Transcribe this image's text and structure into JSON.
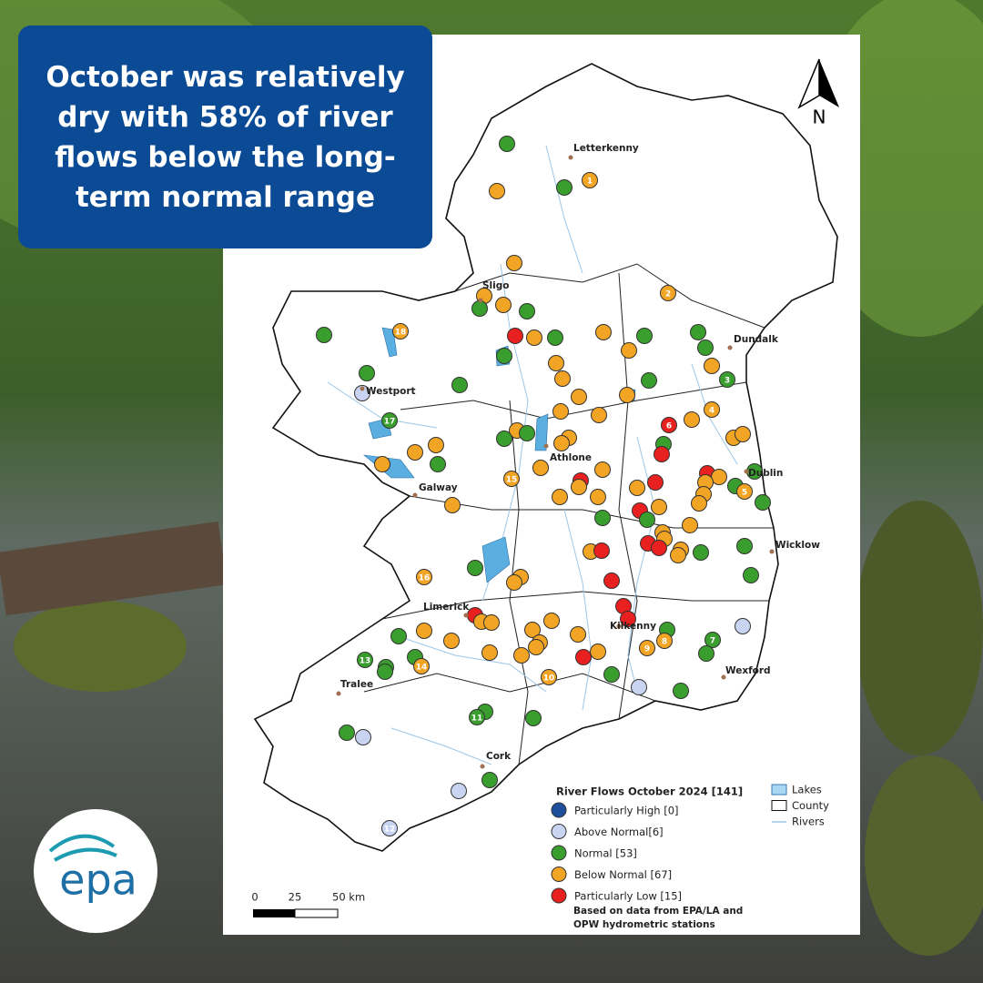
{
  "headline": "October was relatively dry with 58% of river flows below the long-term normal range",
  "north": "N",
  "towns": [
    "Letterkenny",
    "Sligo",
    "Dundalk",
    "Westport",
    "Athlone",
    "Dublin",
    "Galway",
    "Wicklow",
    "Limerick",
    "Kilkenny",
    "Tralee",
    "Wexford",
    "Cork"
  ],
  "station_labels": [
    "1",
    "2",
    "3",
    "4",
    "5",
    "6",
    "7",
    "8",
    "9",
    "10",
    "11",
    "12",
    "13",
    "14",
    "15",
    "16",
    "17",
    "18"
  ],
  "legend": {
    "title": "River Flows October 2024 [141]",
    "classes": [
      {
        "label": "Particularly High [0]",
        "color": "#1d4f9c"
      },
      {
        "label": "Above Normal[6]",
        "color": "#c9d3f2"
      },
      {
        "label": "Normal [53]",
        "color": "#3a9e2e"
      },
      {
        "label": "Below Normal [67]",
        "color": "#f2a424"
      },
      {
        "label": "Particularly Low [15]",
        "color": "#e8201f"
      }
    ],
    "layers": [
      "Lakes",
      "County",
      "Rivers"
    ],
    "note": [
      "Based on data from EPA/LA and",
      "OPW hydrometric stations"
    ]
  },
  "scale": [
    "0",
    "25",
    "50 km"
  ],
  "logo": "epa"
}
